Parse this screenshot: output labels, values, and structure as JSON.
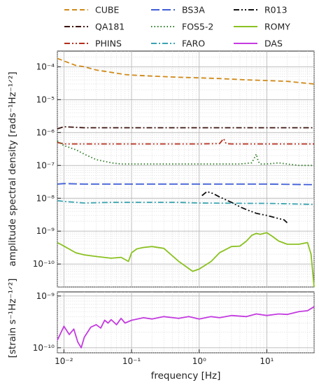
{
  "chart_data": [
    {
      "type": "line",
      "title": "",
      "xlabel": "frequency [Hz]",
      "ylabel": "amplitude spectral density [rads⁻¹Hz⁻¹ᐟ²]",
      "xscale": "log",
      "yscale": "log",
      "xlim": [
        0.008,
        50
      ],
      "ylim": [
        2e-11,
        0.0003
      ],
      "x_ticks": [
        {
          "v": 0.01,
          "label": "10⁻²"
        },
        {
          "v": 0.1,
          "label": "10⁻¹"
        },
        {
          "v": 1,
          "label": "10⁰"
        },
        {
          "v": 10,
          "label": "10¹"
        }
      ],
      "y_ticks": [
        {
          "v": 0.0001,
          "label": "10⁻⁴"
        },
        {
          "v": 1e-05,
          "label": "10⁻⁵"
        },
        {
          "v": 1e-06,
          "label": "10⁻⁶"
        },
        {
          "v": 1e-07,
          "label": "10⁻⁷"
        },
        {
          "v": 1e-08,
          "label": "10⁻⁸"
        },
        {
          "v": 1e-09,
          "label": "10⁻⁹"
        },
        {
          "v": 1e-10,
          "label": "10⁻¹⁰"
        }
      ],
      "grid": true,
      "legend": "top",
      "series": [
        {
          "name": "CUBE",
          "color": "#d08a1a",
          "dash": "dashed",
          "x": [
            0.008,
            0.01,
            0.015,
            0.02,
            0.03,
            0.05,
            0.08,
            0.1,
            0.2,
            0.5,
            1,
            2,
            5,
            10,
            20,
            50
          ],
          "y": [
            0.00018,
            0.00015,
            0.00011,
            0.0001,
            8e-05,
            6.8e-05,
            5.8e-05,
            5.6e-05,
            5.2e-05,
            4.8e-05,
            4.6e-05,
            4.4e-05,
            4e-05,
            3.8e-05,
            3.6e-05,
            3e-05
          ]
        },
        {
          "name": "QA181",
          "color": "#3d1410",
          "dash": "dashdot",
          "x": [
            0.008,
            0.01,
            0.02,
            0.05,
            0.1,
            0.3,
            1,
            3,
            10,
            50
          ],
          "y": [
            1.3e-06,
            1.5e-06,
            1.4e-06,
            1.4e-06,
            1.4e-06,
            1.4e-06,
            1.4e-06,
            1.4e-06,
            1.4e-06,
            1.4e-06
          ]
        },
        {
          "name": "PHINS",
          "color": "#b52e1c",
          "dash": "dashdotdot",
          "x": [
            0.008,
            0.01,
            0.02,
            0.05,
            0.1,
            0.5,
            1,
            2,
            2.3,
            2.5,
            3,
            5,
            10,
            50
          ],
          "y": [
            5e-07,
            4.5e-07,
            4.5e-07,
            4.5e-07,
            4.5e-07,
            4.5e-07,
            4.5e-07,
            4.6e-07,
            6.5e-07,
            4.6e-07,
            4.5e-07,
            4.5e-07,
            4.5e-07,
            4.5e-07
          ]
        },
        {
          "name": "BS3A",
          "color": "#3f5ed8",
          "dash": "longdash",
          "x": [
            0.008,
            0.01,
            0.02,
            0.05,
            0.1,
            0.5,
            1,
            5,
            10,
            50
          ],
          "y": [
            2.7e-08,
            2.8e-08,
            2.7e-08,
            2.7e-08,
            2.7e-08,
            2.7e-08,
            2.7e-08,
            2.7e-08,
            2.7e-08,
            2.6e-08
          ]
        },
        {
          "name": "FOS5-2",
          "color": "#2a7a22",
          "dash": "dotted",
          "x": [
            0.008,
            0.01,
            0.015,
            0.02,
            0.03,
            0.05,
            0.07,
            0.1,
            0.2,
            0.5,
            1,
            2,
            4,
            6,
            7,
            7.5,
            8,
            10,
            15,
            20,
            30,
            50
          ],
          "y": [
            5.5e-07,
            4e-07,
            3e-07,
            2.2e-07,
            1.5e-07,
            1.2e-07,
            1.1e-07,
            1.1e-07,
            1.1e-07,
            1.1e-07,
            1.1e-07,
            1.1e-07,
            1.1e-07,
            1.2e-07,
            2.2e-07,
            1.3e-07,
            1.1e-07,
            1.1e-07,
            1.2e-07,
            1.1e-07,
            1e-07,
            1e-07
          ]
        },
        {
          "name": "FARO",
          "color": "#3aa3b0",
          "dash": "dashdot",
          "x": [
            0.008,
            0.01,
            0.02,
            0.05,
            0.1,
            0.5,
            1,
            5,
            10,
            50
          ],
          "y": [
            8.5e-09,
            8e-09,
            7.2e-09,
            7.5e-09,
            7.5e-09,
            7.5e-09,
            7.2e-09,
            7e-09,
            7e-09,
            6.5e-09
          ]
        },
        {
          "name": "R013",
          "color": "#111111",
          "dash": "dashdotdot",
          "x": [
            1.1,
            1.3,
            1.6,
            2,
            3,
            4,
            5,
            7,
            10,
            14,
            18,
            20
          ],
          "y": [
            1.2e-08,
            1.6e-08,
            1.4e-08,
            1.1e-08,
            7.5e-09,
            5.5e-09,
            4.5e-09,
            3.5e-09,
            3e-09,
            2.5e-09,
            2.2e-09,
            1.8e-09
          ]
        },
        {
          "name": "ROMY",
          "color": "#8bc121",
          "dash": "solid",
          "x": [
            0.008,
            0.01,
            0.015,
            0.02,
            0.03,
            0.05,
            0.07,
            0.09,
            0.1,
            0.12,
            0.15,
            0.2,
            0.3,
            0.5,
            0.8,
            1,
            1.5,
            2,
            3,
            4,
            5,
            6,
            7,
            8,
            10,
            12,
            15,
            20,
            30,
            40,
            45,
            48,
            50
          ],
          "y": [
            4.5e-10,
            3.5e-10,
            2.2e-10,
            1.9e-10,
            1.7e-10,
            1.5e-10,
            1.6e-10,
            1.2e-10,
            2.2e-10,
            2.9e-10,
            3.2e-10,
            3.4e-10,
            3e-10,
            1.2e-10,
            6e-11,
            7e-11,
            1.2e-10,
            2.2e-10,
            3.4e-10,
            3.5e-10,
            5e-10,
            7.5e-10,
            8.5e-10,
            8e-10,
            9e-10,
            7e-10,
            5e-10,
            4e-10,
            4e-10,
            4.5e-10,
            2e-10,
            5e-11,
            2e-11
          ]
        }
      ]
    },
    {
      "type": "line",
      "title": "",
      "xlabel": "frequency [Hz]",
      "ylabel": "[strain s⁻¹Hz⁻¹ᐟ²]",
      "xscale": "log",
      "yscale": "log",
      "xlim": [
        0.008,
        50
      ],
      "ylim": [
        8e-11,
        1.2e-09
      ],
      "x_ticks": [
        {
          "v": 0.01,
          "label": "10⁻²"
        },
        {
          "v": 0.1,
          "label": "10⁻¹"
        },
        {
          "v": 1,
          "label": "10⁰"
        },
        {
          "v": 10,
          "label": "10¹"
        }
      ],
      "y_ticks": [
        {
          "v": 1e-09,
          "label": "10⁻⁹"
        },
        {
          "v": 1e-10,
          "label": "10⁻¹⁰"
        }
      ],
      "grid": true,
      "series": [
        {
          "name": "DAS",
          "color": "#c43be0",
          "dash": "solid",
          "x": [
            0.008,
            0.01,
            0.012,
            0.014,
            0.016,
            0.018,
            0.02,
            0.025,
            0.03,
            0.035,
            0.04,
            0.045,
            0.05,
            0.06,
            0.07,
            0.08,
            0.1,
            0.15,
            0.2,
            0.3,
            0.5,
            0.7,
            1,
            1.5,
            2,
            3,
            5,
            7,
            10,
            15,
            20,
            30,
            40,
            50
          ],
          "y": [
            1.4e-10,
            2.6e-10,
            1.8e-10,
            2.3e-10,
            1.3e-10,
            1e-10,
            1.6e-10,
            2.5e-10,
            2.8e-10,
            2.4e-10,
            3.4e-10,
            3e-10,
            3.5e-10,
            2.8e-10,
            3.7e-10,
            3e-10,
            3.4e-10,
            3.8e-10,
            3.6e-10,
            4e-10,
            3.7e-10,
            4e-10,
            3.6e-10,
            4e-10,
            3.8e-10,
            4.2e-10,
            4e-10,
            4.5e-10,
            4.2e-10,
            4.5e-10,
            4.4e-10,
            5e-10,
            5.2e-10,
            6.2e-10
          ]
        }
      ]
    }
  ]
}
